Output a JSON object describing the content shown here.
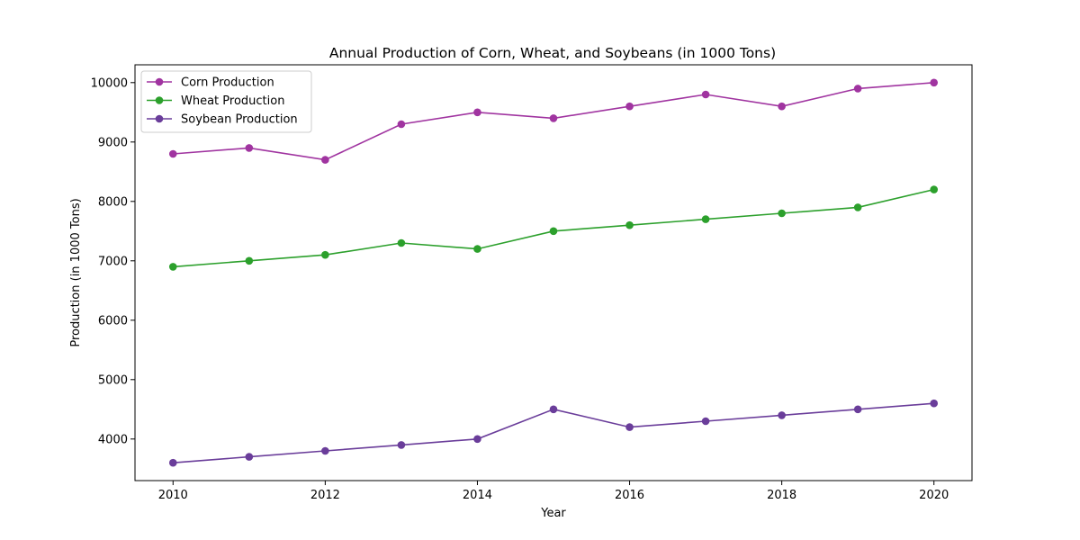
{
  "chart_data": {
    "type": "line",
    "title": "Annual Production of Corn, Wheat, and Soybeans (in 1000 Tons)",
    "xlabel": "Year",
    "ylabel": "Production (in 1000 Tons)",
    "x": [
      2010,
      2011,
      2012,
      2013,
      2014,
      2015,
      2016,
      2017,
      2018,
      2019,
      2020
    ],
    "xlim": [
      2009.5,
      2020.5
    ],
    "ylim": [
      3300,
      10300
    ],
    "xticks": [
      2010,
      2012,
      2014,
      2016,
      2018,
      2020
    ],
    "yticks": [
      4000,
      5000,
      6000,
      7000,
      8000,
      9000,
      10000
    ],
    "grid": false,
    "legend_position": "upper-left",
    "series": [
      {
        "name": "Corn Production",
        "color": "#a034a0",
        "marker": "circle",
        "values": [
          8800,
          8900,
          8700,
          9300,
          9500,
          9400,
          9600,
          9800,
          9600,
          9900,
          10000
        ]
      },
      {
        "name": "Wheat Production",
        "color": "#2ca02c",
        "marker": "circle",
        "values": [
          6900,
          7000,
          7100,
          7300,
          7200,
          7500,
          7600,
          7700,
          7800,
          7900,
          8200
        ]
      },
      {
        "name": "Soybean Production",
        "color": "#6a3d9a",
        "marker": "circle",
        "values": [
          3600,
          3700,
          3800,
          3900,
          4000,
          4500,
          4200,
          4300,
          4400,
          4500,
          4600
        ]
      }
    ]
  }
}
